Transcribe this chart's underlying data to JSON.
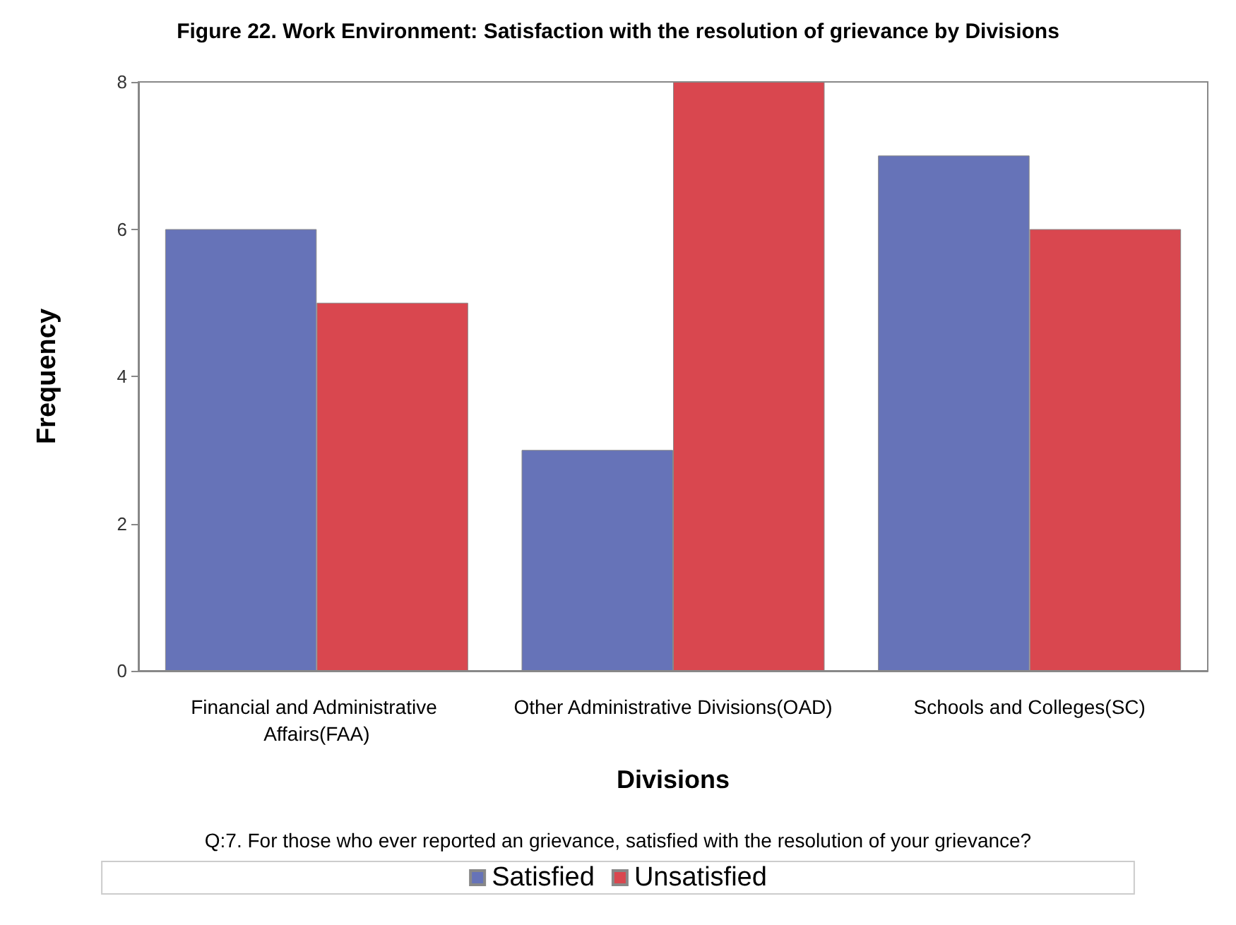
{
  "chart_data": {
    "type": "bar",
    "title": "Figure 22. Work Environment: Satisfaction with the resolution of grievance by Divisions",
    "xlabel": "Divisions",
    "ylabel": "Frequency",
    "legend_title": "Q:7. For those who ever reported an grievance, satisfied with the resolution of your grievance?",
    "categories": [
      "Financial and Administrative Affairs(FAA)",
      "Other Administrative Divisions(OAD)",
      "Schools and Colleges(SC)"
    ],
    "series": [
      {
        "name": "Satisfied",
        "color": "#6673b8",
        "values": [
          6,
          3,
          7
        ]
      },
      {
        "name": "Unsatisfied",
        "color": "#d9474f",
        "values": [
          5,
          8,
          6
        ]
      }
    ],
    "ylim": [
      0,
      8
    ],
    "yticks": [
      0,
      2,
      4,
      6,
      8
    ],
    "grid": false,
    "legend": "bottom"
  }
}
